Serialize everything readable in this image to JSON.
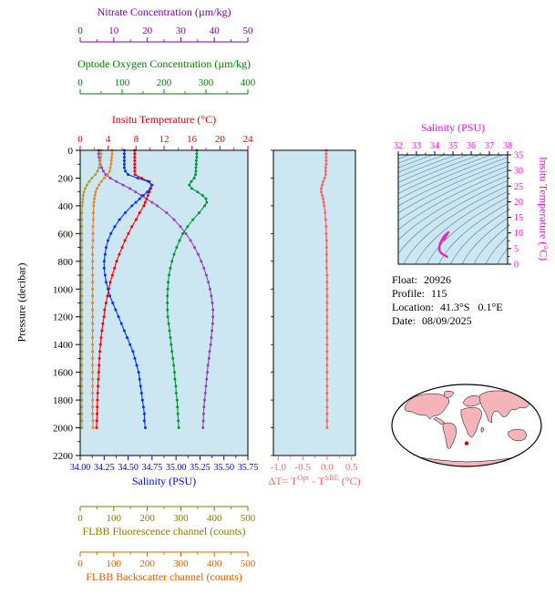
{
  "figure": {
    "bg": "#ffffff",
    "panel_bg": "#cde7f2"
  },
  "info": {
    "rows": [
      {
        "label": "Float:",
        "value": "20926"
      },
      {
        "label": "Profile:",
        "value": "115"
      },
      {
        "label": "Location:",
        "value": "41.3°S   0.1°E"
      },
      {
        "label": "Date:",
        "value": "08/09/2025"
      }
    ]
  },
  "map": {
    "land_color": "#f4b4ba",
    "ocean_color": "#ffffff",
    "outline_color": "#000000",
    "marker": {
      "lat": -41.3,
      "lon": 0.1,
      "color": "#e80000"
    }
  },
  "chart_data": [
    {
      "id": "profiles",
      "type": "line",
      "ylabel": "Pressure (decibar)",
      "ylim": [
        0,
        2200
      ],
      "yticks": [
        0,
        200,
        400,
        600,
        800,
        1000,
        1200,
        1400,
        1600,
        1800,
        2000,
        2200
      ],
      "ytick_labels": [
        "0",
        "200",
        "400",
        "600",
        "800",
        "1000",
        "1200",
        "1400",
        "1600",
        "1800",
        "2000",
        "2200"
      ],
      "pressure": [
        0,
        25,
        50,
        75,
        100,
        125,
        150,
        175,
        200,
        225,
        250,
        275,
        300,
        325,
        350,
        375,
        400,
        450,
        500,
        550,
        600,
        650,
        700,
        750,
        800,
        850,
        900,
        950,
        1000,
        1050,
        1100,
        1150,
        1200,
        1250,
        1300,
        1350,
        1400,
        1450,
        1500,
        1550,
        1600,
        1650,
        1700,
        1750,
        1800,
        1850,
        1900,
        1950,
        2000
      ],
      "x_axes": [
        {
          "id": "nitrate",
          "label": "Nitrate Concentration (µm/kg)",
          "color": "#8000a0",
          "min": 0,
          "max": 50,
          "tick_values": [
            0,
            10,
            20,
            30,
            40,
            50
          ],
          "tick_labels": [
            "0",
            "10",
            "20",
            "30",
            "40",
            "50"
          ],
          "side": "top"
        },
        {
          "id": "oxygen",
          "label": "Optode Oxygen Concentration (µm/kg)",
          "color": "#008000",
          "min": 0,
          "max": 400,
          "tick_values": [
            0,
            100,
            200,
            300,
            400
          ],
          "tick_labels": [
            "0",
            "100",
            "200",
            "300",
            "400"
          ],
          "side": "top"
        },
        {
          "id": "temperature",
          "label": "Insitu Temperature (°C)",
          "color": "#e80000",
          "min": 0,
          "max": 24,
          "tick_values": [
            0,
            4,
            8,
            12,
            16,
            20,
            24
          ],
          "tick_labels": [
            "0",
            "4",
            "8",
            "12",
            "16",
            "20",
            "24"
          ],
          "side": "top"
        },
        {
          "id": "salinity",
          "label": "Salinity (PSU)",
          "color": "#0000e0",
          "min": 34.0,
          "max": 35.75,
          "tick_values": [
            34.0,
            34.25,
            34.5,
            34.75,
            35.0,
            35.25,
            35.5,
            35.75
          ],
          "tick_labels": [
            "34.00",
            "34.25",
            "34.50",
            "34.75",
            "35.00",
            "35.25",
            "35.50",
            "35.75"
          ],
          "side": "bottom"
        },
        {
          "id": "fluorescence",
          "label": "FLBB Fluorescence channel (counts)",
          "color": "#808000",
          "min": 0,
          "max": 500,
          "tick_values": [
            0,
            100,
            200,
            300,
            400,
            500
          ],
          "tick_labels": [
            "0",
            "100",
            "200",
            "300",
            "400",
            "500"
          ],
          "side": "bottom"
        },
        {
          "id": "backscatter",
          "label": "FLBB Backscatter channel (counts)",
          "color": "#e06000",
          "min": 0,
          "max": 500,
          "tick_values": [
            0,
            100,
            200,
            300,
            400,
            500
          ],
          "tick_labels": [
            "0",
            "100",
            "200",
            "300",
            "400",
            "500"
          ],
          "side": "bottom"
        }
      ],
      "series": [
        {
          "name": "Nitrate",
          "axis": "nitrate",
          "color": "#9540c0",
          "values": [
            5.5,
            5.5,
            5.6,
            5.8,
            6.0,
            6.4,
            6.9,
            7.6,
            9.0,
            10.8,
            12.8,
            14.8,
            16.5,
            18.2,
            19.8,
            21.4,
            23.0,
            25.8,
            28.0,
            29.9,
            31.5,
            32.9,
            34.1,
            35.2,
            36.1,
            36.9,
            37.6,
            38.2,
            38.7,
            39.1,
            39.4,
            39.6,
            39.6,
            39.5,
            39.3,
            39.1,
            38.9,
            38.6,
            38.4,
            38.1,
            37.9,
            37.7,
            37.5,
            37.3,
            37.1,
            36.9,
            36.8,
            36.7,
            36.6
          ]
        },
        {
          "name": "Optode Oxygen",
          "axis": "oxygen",
          "color": "#009933",
          "values": [
            278,
            278,
            278,
            277,
            277,
            276,
            276,
            275,
            272,
            265,
            260,
            266,
            280,
            292,
            300,
            302,
            297,
            284,
            269,
            256,
            245,
            237,
            230,
            224,
            219,
            215,
            212,
            210,
            209,
            208,
            208,
            208,
            209,
            211,
            213,
            215,
            217,
            219,
            221,
            223,
            225,
            226,
            228,
            229,
            231,
            232,
            233,
            234,
            235
          ]
        },
        {
          "name": "Insitu Temperature",
          "axis": "temperature",
          "color": "#ff0000",
          "values": [
            7.8,
            7.8,
            7.8,
            7.8,
            7.8,
            7.8,
            7.8,
            7.85,
            8.8,
            9.9,
            10.2,
            10.1,
            9.9,
            9.7,
            9.5,
            9.3,
            9.1,
            8.5,
            8.0,
            7.4,
            6.9,
            6.4,
            6.0,
            5.6,
            5.2,
            4.9,
            4.6,
            4.3,
            4.1,
            3.9,
            3.7,
            3.5,
            3.4,
            3.25,
            3.1,
            3.0,
            2.9,
            2.8,
            2.75,
            2.7,
            2.65,
            2.6,
            2.55,
            2.5,
            2.47,
            2.44,
            2.41,
            2.38,
            2.35
          ]
        },
        {
          "name": "Salinity",
          "axis": "salinity",
          "color": "#0033ff",
          "values": [
            34.46,
            34.46,
            34.46,
            34.46,
            34.46,
            34.46,
            34.47,
            34.5,
            34.6,
            34.71,
            34.75,
            34.73,
            34.7,
            34.66,
            34.62,
            34.58,
            34.54,
            34.47,
            34.41,
            34.36,
            34.32,
            34.29,
            34.27,
            34.26,
            34.25,
            34.25,
            34.26,
            34.27,
            34.29,
            34.31,
            34.34,
            34.37,
            34.4,
            34.43,
            34.46,
            34.49,
            34.52,
            34.55,
            34.57,
            34.59,
            34.61,
            34.62,
            34.63,
            34.64,
            34.65,
            34.66,
            34.67,
            34.67,
            34.68
          ]
        },
        {
          "name": "FLBB Fluorescence",
          "axis": "fluorescence",
          "color": "#b0a030",
          "values": [
            62,
            62,
            61,
            60,
            58,
            56,
            52,
            45,
            35,
            27,
            20,
            15,
            11,
            9,
            8,
            7,
            6,
            5,
            5,
            5,
            5,
            5,
            5,
            5,
            5,
            5,
            5,
            5,
            5,
            5,
            5,
            5,
            5,
            5,
            5,
            5,
            5,
            5,
            5,
            5,
            5,
            5,
            5,
            5,
            5,
            5,
            5,
            5,
            5
          ]
        },
        {
          "name": "FLBB Backscatter",
          "axis": "backscatter",
          "color": "#f08228",
          "values": [
            95,
            95,
            94,
            93,
            92,
            90,
            88,
            82,
            72,
            63,
            56,
            50,
            46,
            44,
            42,
            41,
            40,
            39,
            39,
            38,
            38,
            38,
            37,
            37,
            37,
            37,
            37,
            37,
            37,
            37,
            37,
            37,
            37,
            37,
            37,
            37,
            37,
            37,
            37,
            37,
            37,
            37,
            37,
            37,
            37,
            37,
            37,
            38,
            38
          ]
        }
      ]
    },
    {
      "id": "delta-t",
      "type": "line",
      "xlabel_parts": {
        "p1": "ΔT= T",
        "s1": "Opt",
        "p2": " - T",
        "s2": "SBE",
        "p3": " (°C)"
      },
      "color": "#f86868",
      "xlim": [
        -1.1,
        0.58
      ],
      "xticks": [
        -1.0,
        -0.5,
        0.0,
        0.5
      ],
      "xtick_labels": [
        "-1.0",
        "-0.5",
        "0.0",
        "0.5"
      ],
      "pressure": [
        0,
        25,
        50,
        75,
        100,
        125,
        150,
        175,
        200,
        225,
        250,
        275,
        300,
        325,
        350,
        375,
        400,
        450,
        500,
        550,
        600,
        650,
        700,
        750,
        800,
        850,
        900,
        950,
        1000,
        1050,
        1100,
        1150,
        1200,
        1250,
        1300,
        1350,
        1400,
        1450,
        1500,
        1550,
        1600,
        1650,
        1700,
        1750,
        1800,
        1850,
        1900,
        1950,
        2000
      ],
      "values": [
        -0.02,
        -0.02,
        -0.02,
        -0.02,
        -0.02,
        -0.03,
        -0.03,
        -0.03,
        -0.05,
        -0.08,
        -0.1,
        -0.12,
        -0.12,
        -0.1,
        -0.08,
        -0.07,
        -0.06,
        -0.04,
        -0.03,
        -0.02,
        -0.02,
        -0.01,
        -0.01,
        -0.01,
        -0.01,
        -0.01,
        0.0,
        0.0,
        0.0,
        0.0,
        0.0,
        0.0,
        0.0,
        0.0,
        0.0,
        0.0,
        0.0,
        0.0,
        0.0,
        0.0,
        0.0,
        0.0,
        0.0,
        0.0,
        0.0,
        0.0,
        0.0,
        0.0,
        0.0
      ]
    },
    {
      "id": "ts-diagram",
      "type": "line",
      "xlabel": "Salinity (PSU)",
      "ylabel": "Insitu Temperature (°C)",
      "color": "#ff00ff",
      "curve_color": "#f020c0",
      "contour_color": "#4d7f99",
      "xlim": [
        32,
        38
      ],
      "xticks": [
        32,
        33,
        34,
        35,
        36,
        37,
        38
      ],
      "xtick_labels": [
        "32",
        "33",
        "34",
        "35",
        "36",
        "37",
        "38"
      ],
      "ylim": [
        0,
        35
      ],
      "yticks": [
        0,
        5,
        10,
        15,
        20,
        25,
        30,
        35
      ],
      "ytick_labels": [
        "0",
        "5",
        "10",
        "15",
        "20",
        "25",
        "30",
        "35"
      ],
      "isopycnals": {
        "min": 18.5,
        "max": 30,
        "step": 0.5
      }
    }
  ]
}
